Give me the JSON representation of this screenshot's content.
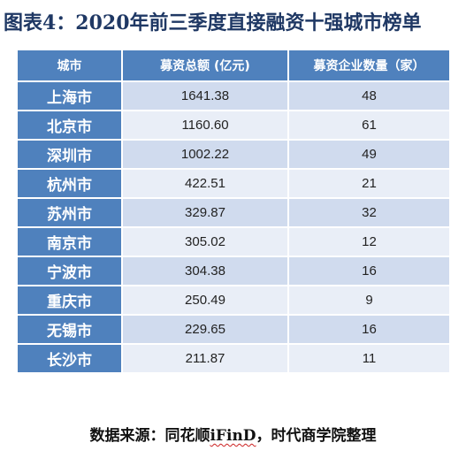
{
  "title": "图表4：2020年前三季度直接融资十强城市榜单",
  "table": {
    "headers": [
      "城市",
      "募资总额 (亿元)",
      "募资企业数量（家）"
    ],
    "rows": [
      [
        "上海市",
        "1641.38",
        "48"
      ],
      [
        "北京市",
        "1160.60",
        "61"
      ],
      [
        "深圳市",
        "1002.22",
        "49"
      ],
      [
        "杭州市",
        "422.51",
        "21"
      ],
      [
        "苏州市",
        "329.87",
        "32"
      ],
      [
        "南京市",
        "305.02",
        "12"
      ],
      [
        "宁波市",
        "304.38",
        "16"
      ],
      [
        "重庆市",
        "250.49",
        "9"
      ],
      [
        "无锡市",
        "229.65",
        "16"
      ],
      [
        "长沙市",
        "211.87",
        "11"
      ]
    ]
  },
  "source": {
    "prefix": "数据来源：同花顺",
    "brand": "iFinD",
    "suffix": "，时代商学院整理"
  }
}
